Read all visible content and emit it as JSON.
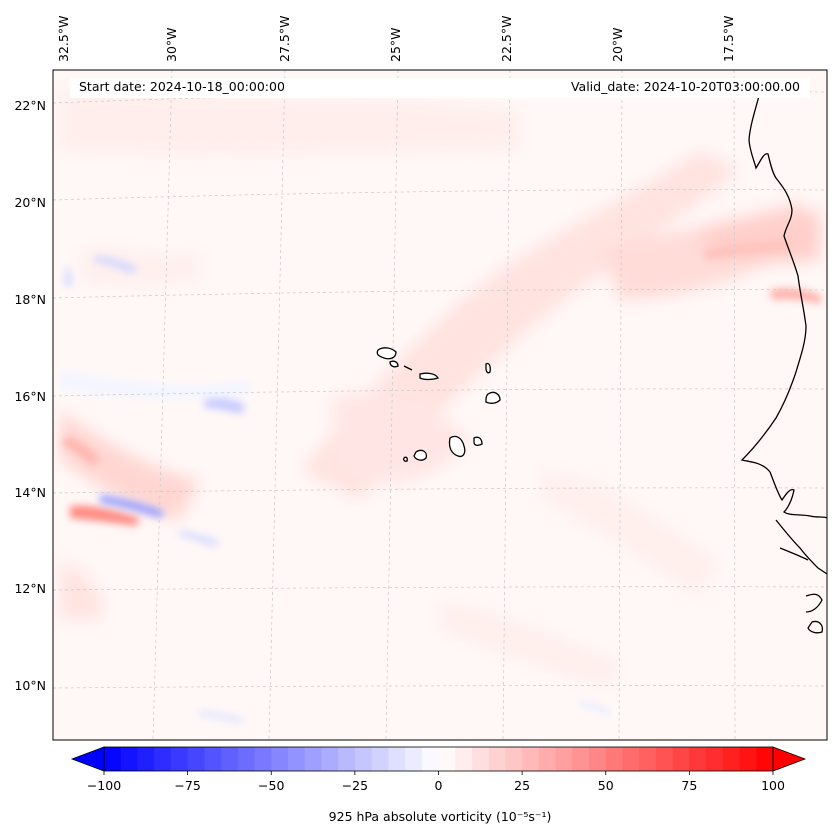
{
  "map": {
    "start_date": "Start date: 2024-10-18_00:00:00",
    "valid_date": "Valid_date: 2024-10-20T03:00:00.00",
    "lon_labels": [
      "32.5°W",
      "30°W",
      "27.5°W",
      "25°W",
      "22.5°W",
      "20°W",
      "17.5°W"
    ],
    "lat_labels": [
      "22°N",
      "20°N",
      "18°N",
      "16°N",
      "14°N",
      "12°N",
      "10°N"
    ],
    "variable": "925 hPa absolute vorticity",
    "units_label": "(10⁻⁵s⁻¹)",
    "colorbar": {
      "min": -100,
      "max": 100,
      "ticks": [
        "−100",
        "−75",
        "−50",
        "−25",
        "0",
        "25",
        "50",
        "75",
        "100"
      ],
      "colormap": "bwr",
      "extend": "both"
    },
    "colors": {
      "negative": "#0000ff",
      "neutral": "#ffffff",
      "positive": "#ff0000",
      "coastline": "#000000",
      "gridline": "#c8c8c8"
    },
    "features": [
      "coastline-west-africa",
      "cape-verde-islands"
    ]
  }
}
